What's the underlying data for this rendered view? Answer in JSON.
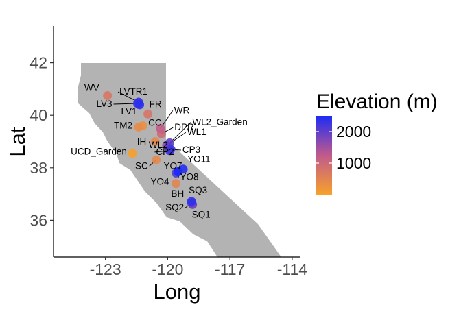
{
  "chart_data": {
    "type": "scatter",
    "xlabel": "Long",
    "ylabel": "Lat",
    "xlim": [
      -125.5,
      -113.6
    ],
    "ylim": [
      34.6,
      43.4
    ],
    "x_ticks": [
      "-123",
      "-120",
      "-117",
      "-114"
    ],
    "x_tick_values": [
      -123,
      -120,
      -117,
      -114
    ],
    "y_ticks": [
      "36",
      "38",
      "40",
      "42"
    ],
    "y_tick_values": [
      36,
      38,
      40,
      42
    ],
    "grid": false,
    "map_region": "California",
    "legend": {
      "title": "Elevation (m)",
      "position": "right",
      "ticks": [
        "1000",
        "2000"
      ],
      "tick_values": [
        1000,
        2000
      ],
      "range": [
        0,
        2500
      ],
      "colors": {
        "low": "#f7a12a",
        "mid": "#c15a8c",
        "high": "#1d2cf5"
      }
    },
    "points": [
      {
        "name": "WV",
        "long": -122.9,
        "lat": 40.75,
        "elevation": 750
      },
      {
        "name": "LVTR1",
        "long": -121.4,
        "lat": 40.5,
        "elevation": 2350
      },
      {
        "name": "LV3",
        "long": -121.45,
        "lat": 40.45,
        "elevation": 2300
      },
      {
        "name": "LV1",
        "long": -121.35,
        "lat": 40.4,
        "elevation": 2400
      },
      {
        "name": "FR",
        "long": -120.95,
        "lat": 40.05,
        "elevation": 800
      },
      {
        "name": "WR",
        "long": -120.35,
        "lat": 39.5,
        "elevation": 1200
      },
      {
        "name": "CC",
        "long": -121.2,
        "lat": 39.6,
        "elevation": 300
      },
      {
        "name": "DPR",
        "long": -120.3,
        "lat": 39.3,
        "elevation": 1000
      },
      {
        "name": "TM2",
        "long": -121.4,
        "lat": 39.55,
        "elevation": 380
      },
      {
        "name": "WL2_Garden",
        "long": -119.9,
        "lat": 38.95,
        "elevation": 2000
      },
      {
        "name": "WL1",
        "long": -120.05,
        "lat": 38.85,
        "elevation": 1600
      },
      {
        "name": "WL2",
        "long": -119.95,
        "lat": 38.8,
        "elevation": 2000
      },
      {
        "name": "CP3",
        "long": -119.85,
        "lat": 38.7,
        "elevation": 2250
      },
      {
        "name": "IH",
        "long": -120.6,
        "lat": 39.0,
        "elevation": 450
      },
      {
        "name": "UCD_Garden",
        "long": -121.7,
        "lat": 38.55,
        "elevation": 16
      },
      {
        "name": "CP2",
        "long": -119.9,
        "lat": 38.65,
        "elevation": 2200
      },
      {
        "name": "SC",
        "long": -120.55,
        "lat": 38.3,
        "elevation": 420
      },
      {
        "name": "YO7",
        "long": -119.5,
        "lat": 37.85,
        "elevation": 2450
      },
      {
        "name": "YO11",
        "long": -119.25,
        "lat": 37.95,
        "elevation": 2470
      },
      {
        "name": "YO8",
        "long": -119.5,
        "lat": 37.85,
        "elevation": 2500
      },
      {
        "name": "YO4",
        "long": -119.6,
        "lat": 37.8,
        "elevation": 2150
      },
      {
        "name": "BH",
        "long": -119.6,
        "lat": 37.4,
        "elevation": 510
      },
      {
        "name": "SQ3",
        "long": -118.85,
        "lat": 36.72,
        "elevation": 2370
      },
      {
        "name": "SQ2",
        "long": -118.85,
        "lat": 36.66,
        "elevation": 1940
      },
      {
        "name": "SQ1",
        "long": -118.8,
        "lat": 36.6,
        "elevation": 1920
      }
    ]
  }
}
